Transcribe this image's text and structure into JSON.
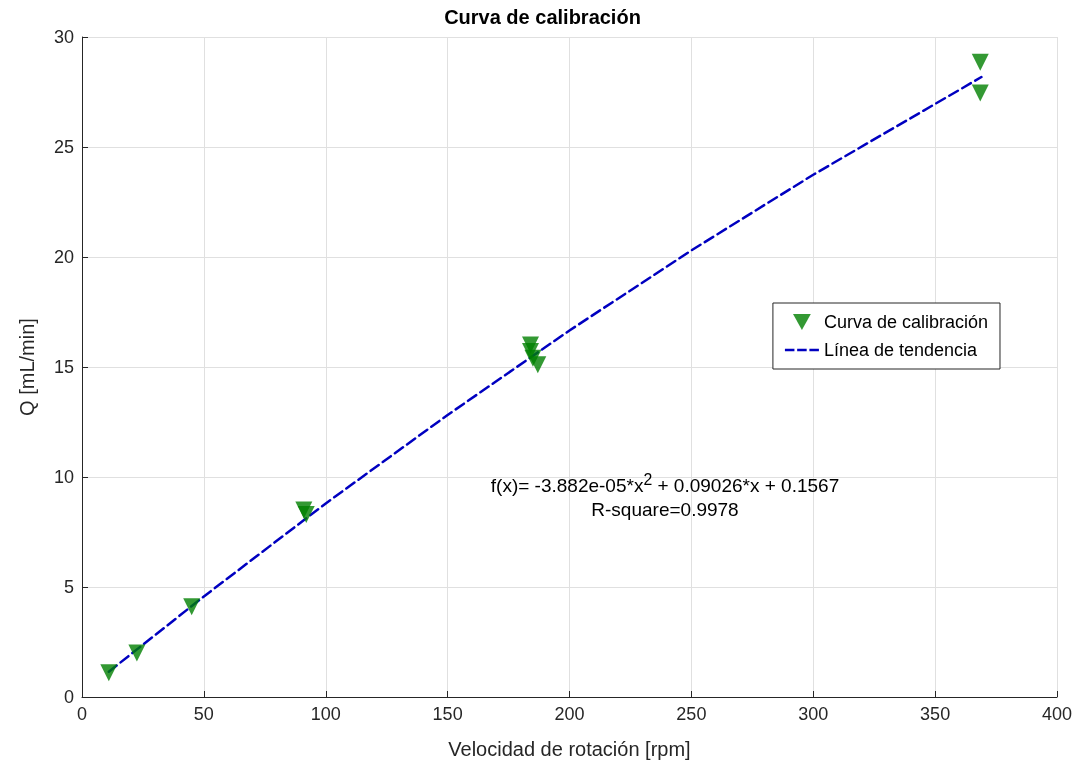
{
  "chart_data": {
    "type": "scatter",
    "title": "Curva de calibración",
    "xlabel": "Velocidad de rotación [rpm]",
    "ylabel": "Q [mL/min]",
    "xlim": [
      0,
      400
    ],
    "xticks": [
      0,
      50,
      100,
      150,
      200,
      250,
      300,
      350,
      400
    ],
    "ylim": [
      0,
      30
    ],
    "yticks": [
      0,
      5,
      10,
      15,
      20,
      25,
      30
    ],
    "grid": true,
    "legend": "right",
    "marker": "triangle",
    "annotations": [
      "f(x)= -3.882e-05*x$^{2}$ + 0.09026*x + 0.1567",
      "R-square=0.9978"
    ],
    "series": [
      {
        "name": "Curva de calibración",
        "color": "#007f00",
        "x": [
          11,
          22.5,
          45,
          91,
          92,
          184,
          184,
          185,
          187,
          368.5,
          368.5
        ],
        "values": [
          1.1,
          2.0,
          4.1,
          8.5,
          8.3,
          16.0,
          15.7,
          15.4,
          15.1,
          28.85,
          27.45
        ]
      },
      {
        "name": "Línea de tendencia",
        "type": "line",
        "color": "#0000c0",
        "marker": "none",
        "line_style": "dashed",
        "x": [
          11,
          50,
          100,
          150,
          200,
          250,
          300,
          369
        ],
        "values": [
          1.15,
          4.57,
          8.8,
          12.82,
          16.66,
          20.3,
          23.74,
          28.18
        ]
      }
    ]
  }
}
